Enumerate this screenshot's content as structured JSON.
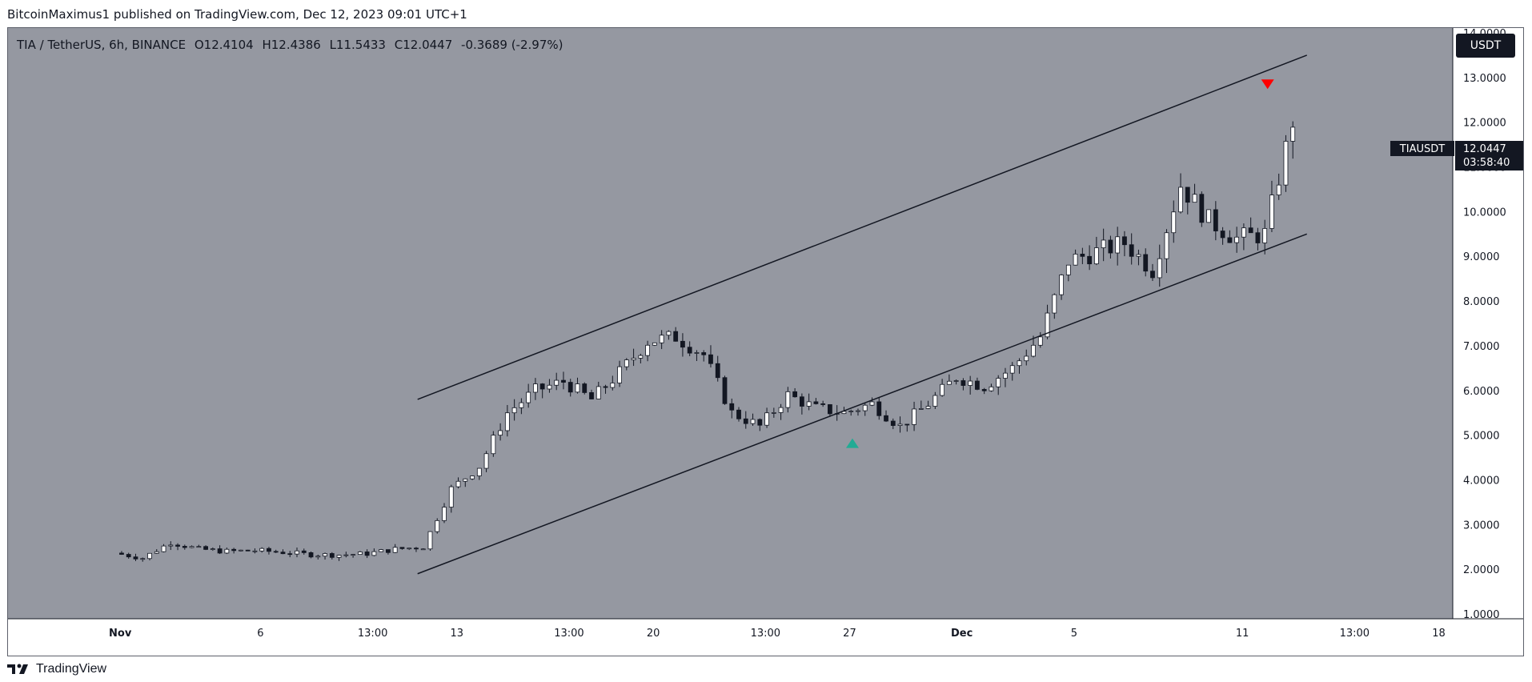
{
  "caption": "BitcoinMaximus1 published on TradingView.com, Dec 12, 2023 09:01 UTC+1",
  "legend": {
    "symbol": "TIA / TetherUS, 6h, BINANCE",
    "o_label": "O",
    "o": "12.4104",
    "h_label": "H",
    "h": "12.4386",
    "l_label": "L",
    "l": "11.5433",
    "c_label": "C",
    "c": "12.0447",
    "change": "-0.3689 (-2.97%)"
  },
  "currency_button": "USDT",
  "price_tag": {
    "symbol": "TIAUSDT",
    "price": "12.0447",
    "countdown": "03:58:40"
  },
  "footer_brand": "TradingView",
  "colors": {
    "background": "#9598a1",
    "candle_up": "#ffffff",
    "candle_down": "#131722",
    "marker_up": "#22ab94",
    "marker_down": "#ff0000",
    "channel": "#131722"
  },
  "chart_data": {
    "type": "candlestick",
    "y_axis": {
      "ylim": [
        1.0,
        14.0
      ],
      "ticks": [
        "1.0000",
        "2.0000",
        "3.0000",
        "4.0000",
        "5.0000",
        "6.0000",
        "7.0000",
        "8.0000",
        "9.0000",
        "10.0000",
        "11.0000",
        "12.0000",
        "13.0000",
        "14.0000"
      ]
    },
    "x_axis": {
      "labels": [
        {
          "text": "Nov",
          "day": 0
        },
        {
          "text": "6",
          "day": 5
        },
        {
          "text": "13:00",
          "day": 9
        },
        {
          "text": "13",
          "day": 12
        },
        {
          "text": "13:00",
          "day": 16
        },
        {
          "text": "20",
          "day": 19
        },
        {
          "text": "13:00",
          "day": 23
        },
        {
          "text": "27",
          "day": 26
        },
        {
          "text": "Dec",
          "day": 30
        },
        {
          "text": "5",
          "day": 34
        },
        {
          "text": "11",
          "day": 40
        },
        {
          "text": "13:00",
          "day": 44
        },
        {
          "text": "18",
          "day": 47
        }
      ],
      "xlim_days": [
        -4.0,
        47.5
      ]
    },
    "daily_closes": [
      2.25,
      2.6,
      2.45,
      2.4,
      2.42,
      2.38,
      2.33,
      2.32,
      2.35,
      2.45,
      2.5,
      3.8,
      4.3,
      5.5,
      6.0,
      6.2,
      5.8,
      6.4,
      7.1,
      7.2,
      6.8,
      5.5,
      5.2,
      5.9,
      5.6,
      5.5,
      5.7,
      5.2,
      5.7,
      6.3,
      6.1,
      6.5,
      7.2,
      8.9,
      9.1,
      9.3,
      8.7,
      10.6,
      9.8,
      9.4,
      9.5,
      12.04
    ],
    "annotations": {
      "channel_upper": {
        "start": {
          "day": 10.6,
          "price": 5.8
        },
        "end": {
          "day": 42.3,
          "price": 13.5
        }
      },
      "channel_lower": {
        "start": {
          "day": 10.6,
          "price": 1.9
        },
        "end": {
          "day": 42.3,
          "price": 9.5
        }
      },
      "marker_up": {
        "day": 26.1,
        "price": 4.82
      },
      "marker_down": {
        "day": 40.9,
        "price": 12.85
      }
    }
  }
}
